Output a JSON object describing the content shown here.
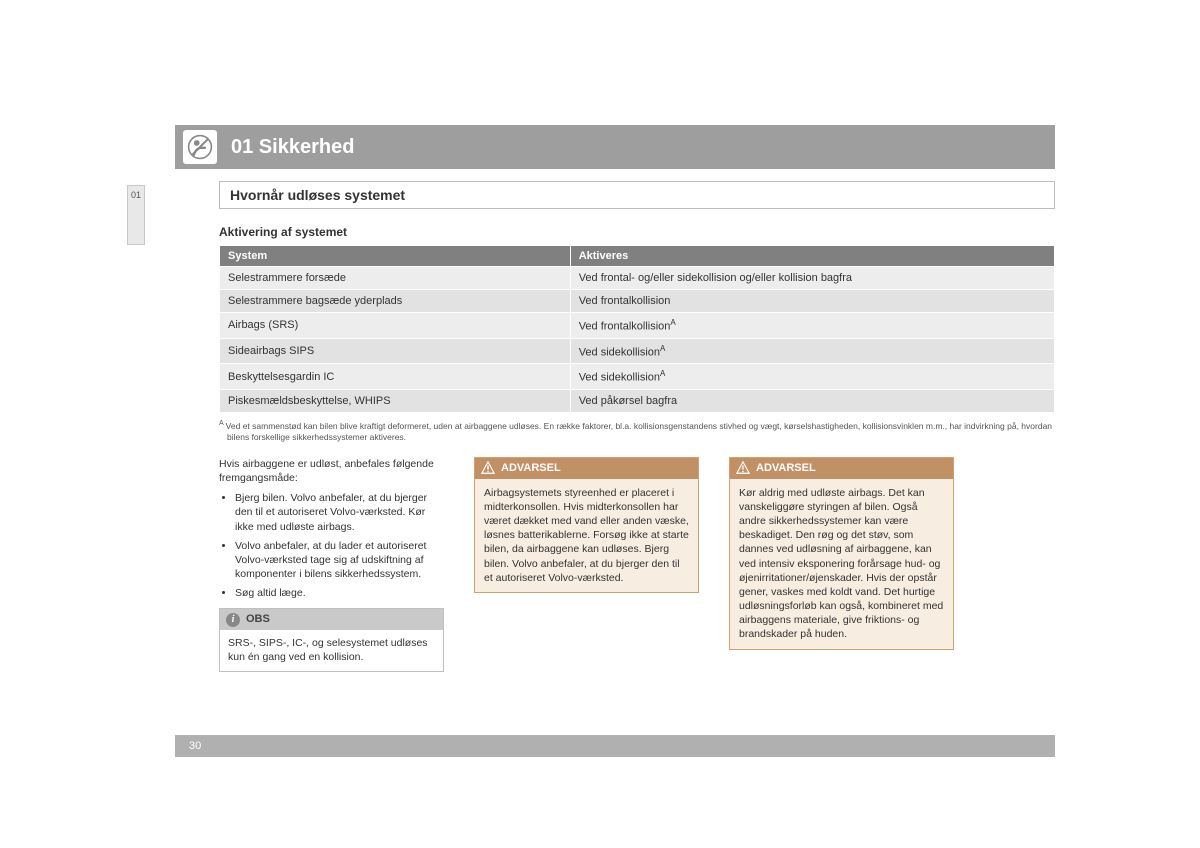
{
  "chapter": {
    "number": "01",
    "title": "01 Sikkerhed"
  },
  "side_tab": "01",
  "section_title": "Hvornår udløses systemet",
  "subheading": "Aktivering af systemet",
  "table": {
    "columns": [
      "System",
      "Aktiveres"
    ],
    "rows": [
      [
        "Selestrammere forsæde",
        "Ved frontal- og/eller sidekollision og/eller kollision bagfra"
      ],
      [
        "Selestrammere bagsæde yderplads",
        "Ved frontalkollision"
      ],
      [
        "Airbags (SRS)",
        "Ved frontalkollision"
      ],
      [
        "Sideairbags SIPS",
        "Ved sidekollision"
      ],
      [
        "Beskyttelsesgardin IC",
        "Ved sidekollision"
      ],
      [
        "Piskesmældsbeskyttelse, WHIPS",
        "Ved påkørsel bagfra"
      ]
    ],
    "footnote_rows": [
      2,
      3,
      4
    ],
    "footnote_mark": "A"
  },
  "footnote": "Ved et sammenstød kan bilen blive kraftigt deformeret, uden at airbaggene udløses. En række faktorer, bl.a. kollisionsgenstandens stivhed og vægt, kørselshastigheden, kollisionsvinklen m.m., har indvirkning på, hvordan bilens forskellige sikkerhedssystemer aktiveres.",
  "intro_text": "Hvis airbaggene er udløst, anbefales følgende fremgangsmåde:",
  "bullets": [
    "Bjerg bilen. Volvo anbefaler, at du bjerger den til et autoriseret Volvo-værksted. Kør ikke med udløste airbags.",
    "Volvo anbefaler, at du lader et autoriseret Volvo-værksted tage sig af udskiftning af komponenter i bilens sikkerhedssystem.",
    "Søg altid læge."
  ],
  "obs": {
    "label": "OBS",
    "text": "SRS-, SIPS-, IC-, og selesystemet udløses kun én gang ved en kollision."
  },
  "warning1": {
    "label": "ADVARSEL",
    "text": "Airbagsystemets styreenhed er placeret i midterkonsollen. Hvis midterkonsollen har været dækket med vand eller anden væske, løsnes batterikablerne. Forsøg ikke at starte bilen, da airbaggene kan udløses. Bjerg bilen. Volvo anbefaler, at du bjerger den til et autoriseret Volvo-værksted."
  },
  "warning2": {
    "label": "ADVARSEL",
    "text": "Kør aldrig med udløste airbags. Det kan vanskeliggøre styringen af bilen. Også andre sikkerhedssystemer kan være beskadiget. Den røg og det støv, som dannes ved udløsning af airbaggene, kan ved intensiv eksponering forårsage hud- og øjenirritationer/øjenskader. Hvis der opstår gener, vaskes med koldt vand. Det hurtige udløsningsforløb kan også, kombineret med airbaggens materiale, give friktions- og brandskader på huden."
  },
  "page_number": "30"
}
